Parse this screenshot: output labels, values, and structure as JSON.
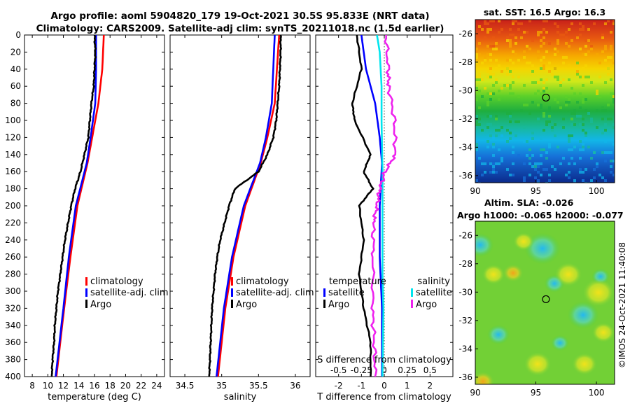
{
  "figure": {
    "title_line1": "Argo profile: aoml 5904820_179 19-Oct-2021 30.5S 95.833E (NRT data)",
    "title_line2": "Climatology: CARS2009. Satellite-adj clim: synTS_20211018.nc (1.5d earlier)",
    "stamp": "©IMOS 24-Oct-2021 11:40:08"
  },
  "colors": {
    "red": "#ff0000",
    "blue": "#0000ff",
    "black": "#000000",
    "cyan": "#00e5ee",
    "magenta": "#ee22ee"
  },
  "chart_data": [
    {
      "id": "temperature",
      "type": "line",
      "xlabel": "temperature (deg C)",
      "xlim": [
        7,
        25
      ],
      "ylim": [
        0,
        400
      ],
      "xticks": [
        8,
        10,
        12,
        14,
        16,
        18,
        20,
        22,
        24
      ],
      "yticks": [
        0,
        20,
        40,
        60,
        80,
        100,
        120,
        140,
        160,
        180,
        200,
        220,
        240,
        260,
        280,
        300,
        320,
        340,
        360,
        380,
        400
      ],
      "legend": [
        "climatology",
        "satellite-adj. clim",
        "Argo"
      ],
      "series": [
        {
          "name": "climatology",
          "color": "red",
          "depth": [
            0,
            40,
            80,
            120,
            150,
            200,
            260,
            320,
            400
          ],
          "values": [
            17.2,
            17.0,
            16.5,
            15.7,
            15.1,
            13.8,
            12.9,
            12.1,
            11.1
          ]
        },
        {
          "name": "satellite-adj. clim",
          "color": "blue",
          "depth": [
            0,
            40,
            80,
            120,
            150,
            200,
            260,
            320,
            400
          ],
          "values": [
            16.2,
            16.2,
            16.1,
            15.5,
            15.0,
            13.6,
            12.7,
            12.0,
            11.0
          ]
        },
        {
          "name": "Argo",
          "color": "black",
          "depth": [
            0,
            20,
            40,
            60,
            80,
            100,
            120,
            140,
            160,
            180,
            200,
            220,
            240,
            260,
            280,
            300,
            320,
            340,
            360,
            380,
            400
          ],
          "values": [
            16.0,
            16.1,
            16.0,
            15.9,
            15.6,
            15.4,
            15.2,
            14.7,
            14.2,
            13.5,
            13.0,
            12.6,
            12.2,
            11.9,
            11.6,
            11.3,
            11.1,
            10.9,
            10.8,
            10.6,
            10.5
          ]
        }
      ]
    },
    {
      "id": "salinity",
      "type": "line",
      "xlabel": "salinity",
      "xlim": [
        34.3,
        36.2
      ],
      "ylim": [
        0,
        400
      ],
      "xticks": [
        34.5,
        35,
        35.5,
        36
      ],
      "xticklabels": [
        "34.5",
        "35",
        "35.5",
        "36"
      ],
      "legend": [
        "climatology",
        "satellite-adj. clim",
        "Argo"
      ],
      "series": [
        {
          "name": "climatology",
          "color": "red",
          "depth": [
            0,
            40,
            80,
            120,
            150,
            200,
            260,
            320,
            400
          ],
          "values": [
            35.78,
            35.75,
            35.72,
            35.62,
            35.53,
            35.32,
            35.16,
            35.05,
            34.95
          ]
        },
        {
          "name": "satellite-adj. clim",
          "color": "blue",
          "depth": [
            0,
            40,
            80,
            120,
            150,
            200,
            260,
            320,
            400
          ],
          "values": [
            35.72,
            35.7,
            35.68,
            35.6,
            35.52,
            35.3,
            35.14,
            35.03,
            34.93
          ]
        },
        {
          "name": "Argo",
          "color": "black",
          "depth": [
            0,
            20,
            40,
            60,
            80,
            100,
            120,
            140,
            160,
            180,
            200,
            220,
            240,
            260,
            280,
            300,
            320,
            340,
            360,
            380,
            400
          ],
          "values": [
            35.8,
            35.8,
            35.79,
            35.78,
            35.76,
            35.74,
            35.7,
            35.62,
            35.5,
            35.18,
            35.1,
            35.04,
            34.98,
            34.94,
            34.91,
            34.89,
            34.87,
            34.86,
            34.85,
            34.84,
            34.83
          ]
        }
      ]
    },
    {
      "id": "difference",
      "type": "line",
      "xlabel": "T difference from climatology",
      "xlabel_top": "S difference from climatology",
      "xlim": [
        -3,
        3
      ],
      "ylim": [
        0,
        400
      ],
      "xticks": [
        -2,
        -1,
        0,
        1,
        2
      ],
      "xticklabels": [
        "-2",
        "-1",
        "0",
        "1",
        "2"
      ],
      "top_ticks": [
        -0.5,
        -0.25,
        0,
        0.25,
        0.5
      ],
      "top_ticklabels": [
        "-0.5",
        "-0.25",
        "0",
        "0.25",
        "0.5"
      ],
      "legend_temperature_title": "temperature",
      "legend_salinity_title": "salinity",
      "legend_temperature": [
        "satellite",
        "Argo"
      ],
      "legend_salinity": [
        "satellite",
        "Argo"
      ],
      "series": [
        {
          "name": "temperature satellite",
          "color": "blue",
          "depth": [
            0,
            40,
            80,
            120,
            150,
            200,
            260,
            320,
            400
          ],
          "values": [
            -1.0,
            -0.8,
            -0.4,
            -0.2,
            -0.1,
            -0.2,
            -0.2,
            -0.1,
            -0.1
          ]
        },
        {
          "name": "temperature Argo",
          "color": "black",
          "depth": [
            0,
            40,
            80,
            100,
            140,
            160,
            180,
            200,
            240,
            280,
            320,
            360,
            400
          ],
          "values": [
            -1.2,
            -1.0,
            -1.4,
            -1.3,
            -0.6,
            -0.9,
            -0.5,
            -1.1,
            -0.9,
            -1.1,
            -0.9,
            -0.6,
            -0.6
          ]
        },
        {
          "name": "salinity satellite",
          "color": "cyan",
          "depth": [
            0,
            20,
            60,
            100,
            160,
            220,
            280,
            320,
            400
          ],
          "values": [
            -0.08,
            -0.05,
            -0.03,
            -0.03,
            -0.02,
            -0.02,
            -0.02,
            -0.01,
            -0.02
          ]
        },
        {
          "name": "salinity Argo",
          "color": "magenta",
          "depth": [
            0,
            40,
            60,
            100,
            140,
            160,
            180,
            200,
            220,
            260,
            320,
            360,
            400
          ],
          "values": [
            0.02,
            0.04,
            0.05,
            0.11,
            0.12,
            0.01,
            -0.05,
            -0.08,
            -0.12,
            -0.12,
            -0.13,
            -0.11,
            -0.1
          ]
        }
      ]
    },
    {
      "id": "sst_map",
      "type": "heatmap",
      "title": "sat. SST: 16.5 Argo: 16.3",
      "xlim": [
        90,
        101.5
      ],
      "ylim": [
        -36.5,
        -25
      ],
      "xticks": [
        90,
        95,
        100
      ],
      "yticks": [
        -26,
        -28,
        -30,
        -32,
        -34,
        -36
      ],
      "argo_position": [
        95.833,
        -30.5
      ]
    },
    {
      "id": "sla_map",
      "type": "heatmap",
      "title_line1": "Altim. SLA: -0.026",
      "title_line2": "Argo h1000: -0.065 h2000: -0.077",
      "xlim": [
        90,
        101.5
      ],
      "ylim": [
        -36.5,
        -25
      ],
      "xticks": [
        90,
        95,
        100
      ],
      "yticks": [
        -26,
        -28,
        -30,
        -32,
        -34,
        -36
      ],
      "argo_position": [
        95.833,
        -30.5
      ]
    }
  ]
}
